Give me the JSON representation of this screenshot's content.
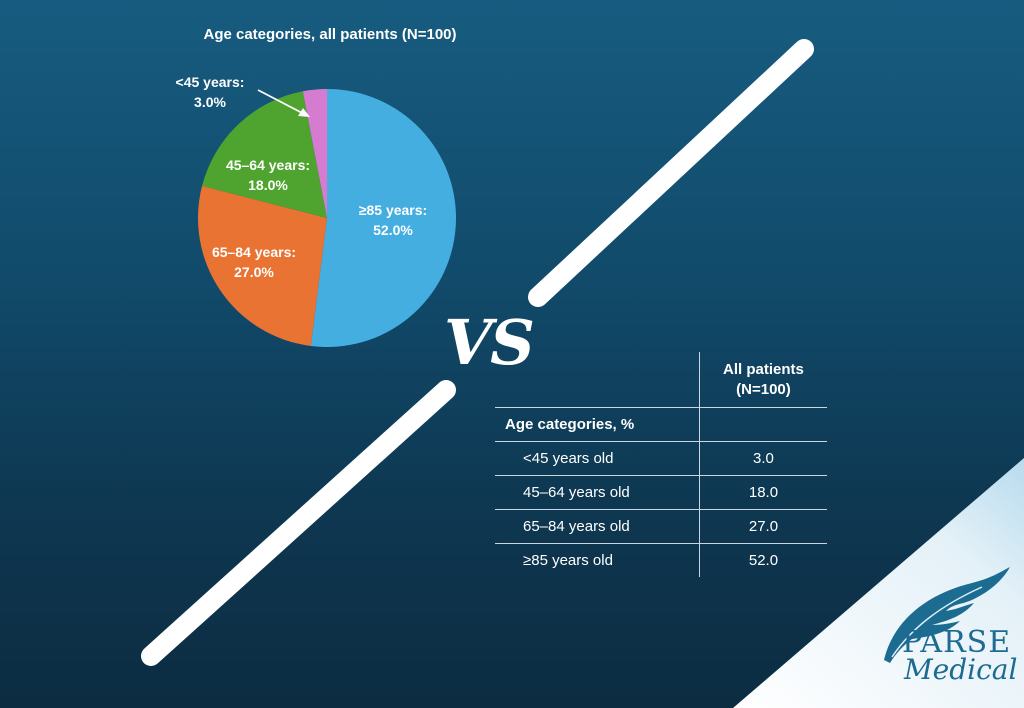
{
  "chart_data": [
    {
      "type": "pie",
      "title": "Age categories, all patients (N=100)",
      "slices": [
        {
          "label": "≥85 years:",
          "value_label": "52.0%",
          "value": 52.0,
          "color": "#45aee0"
        },
        {
          "label": "65–84 years:",
          "value_label": "27.0%",
          "value": 27.0,
          "color": "#e97332"
        },
        {
          "label": "45–64 years:",
          "value_label": "18.0%",
          "value": 18.0,
          "color": "#4ea42f"
        },
        {
          "label": "<45 years:",
          "value_label": "3.0%",
          "value": 3.0,
          "color": "#d57bd0"
        }
      ]
    },
    {
      "type": "table",
      "column_header": [
        "All patients",
        "(N=100)"
      ],
      "section_label": "Age categories, %",
      "rows": [
        {
          "label": "<45 years old",
          "value": "3.0"
        },
        {
          "label": "45–64 years old",
          "value": "18.0"
        },
        {
          "label": "65–84 years old",
          "value": "27.0"
        },
        {
          "label": "≥85 years old",
          "value": "52.0"
        }
      ]
    }
  ],
  "vs_label": "VS",
  "logo": {
    "line1": "PARSE",
    "line2": "Medical"
  },
  "colors": {
    "background_top": "#175c80",
    "background_bottom": "#0c2c41",
    "divider": "#ffffff",
    "corner": "#dfeef7",
    "logo": "#1c6b91"
  }
}
